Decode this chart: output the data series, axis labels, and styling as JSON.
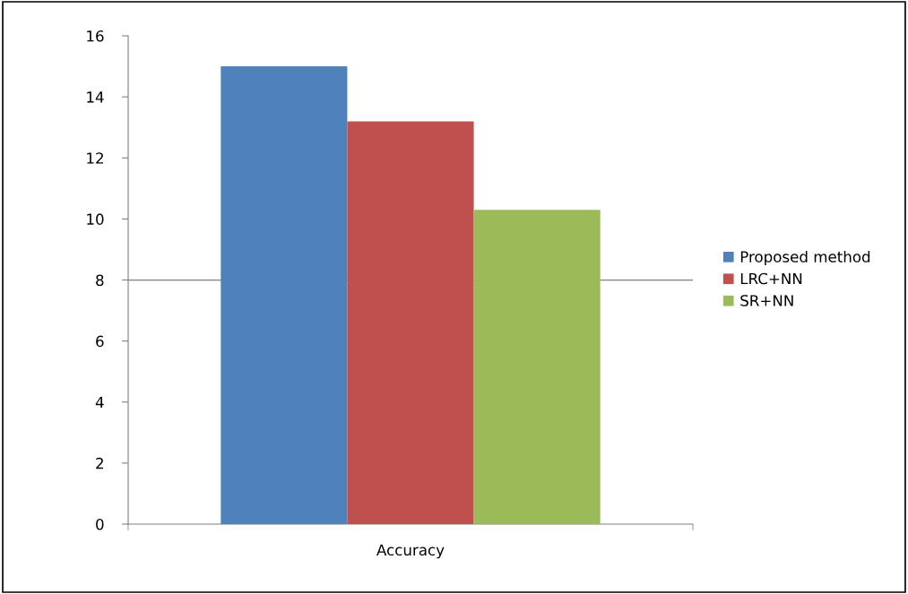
{
  "chart_data": {
    "type": "bar",
    "categories": [
      "Accuracy"
    ],
    "series": [
      {
        "name": "Proposed method",
        "color": "#4f81bd",
        "values": [
          15.0
        ]
      },
      {
        "name": "LRC+NN",
        "color": "#c0504d",
        "values": [
          13.2
        ]
      },
      {
        "name": "SR+NN",
        "color": "#9bbb59",
        "values": [
          10.3
        ]
      }
    ],
    "ylim": [
      0,
      16
    ],
    "yticks": [
      0,
      2,
      4,
      6,
      8,
      10,
      12,
      14,
      16
    ],
    "ref_lines": [
      {
        "axis": "y",
        "value": 8,
        "color": "#808080"
      }
    ],
    "grid": false,
    "legend": "right"
  }
}
